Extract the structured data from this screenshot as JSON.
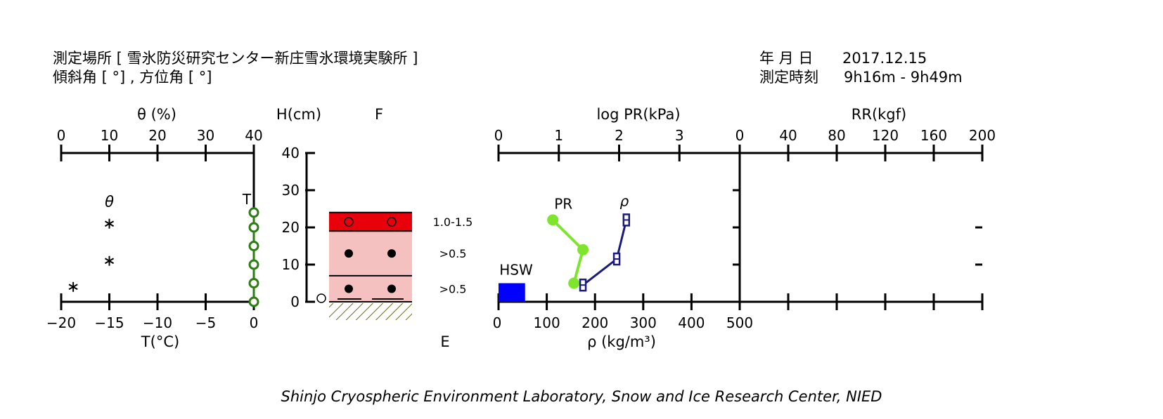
{
  "header": {
    "site_line": "測定場所 [ 雪氷防災研究センター新庄雪氷環境実験所 ]",
    "angle_line": "傾斜角 [ °] , 方位角 [ °]",
    "date_label": "年 月 日",
    "date_value": "2017.12.15",
    "time_label": "測定時刻",
    "time_value": "9h16m - 9h49m"
  },
  "credit": "Shinjo Cryospheric Environment Laboratory, Snow and Ice Research Center, NIED",
  "chart_data": [
    {
      "type": "scatter",
      "name": "temperature-and-water-content",
      "top_axis": {
        "label": "θ (%)",
        "ticks": [
          "0",
          "10",
          "20",
          "30",
          "40"
        ],
        "range": [
          0,
          40
        ]
      },
      "bottom_axis": {
        "label": "T(°C)",
        "ticks": [
          "−20",
          "−15",
          "−10",
          "−5",
          "0"
        ],
        "range": [
          -20,
          0
        ]
      },
      "y_range_cm": [
        0,
        40
      ],
      "series": [
        {
          "name": "T",
          "marker": "circle",
          "color": "#2e7d12",
          "points": [
            [
              0,
              0
            ],
            [
              0,
              5
            ],
            [
              0,
              10
            ],
            [
              0,
              15
            ],
            [
              0,
              20
            ],
            [
              0,
              24
            ]
          ]
        },
        {
          "name": "θ",
          "marker": "asterisk",
          "color": "#000000",
          "points": [
            [
              2.5,
              4
            ],
            [
              10,
              11
            ],
            [
              10,
              21
            ]
          ]
        }
      ]
    },
    {
      "type": "table",
      "name": "snow-stratigraphy",
      "y_label": "H(cm)",
      "y_ticks": [
        "0",
        "10",
        "20",
        "30",
        "40"
      ],
      "y_range": [
        0,
        40
      ],
      "f_label": "F",
      "e_label": "E",
      "total_height_cm": 24,
      "layers": [
        {
          "bottom": 0,
          "top": 7,
          "grain": "filled-circle",
          "grain_size": ">0.5",
          "color": "#f4c0c0"
        },
        {
          "bottom": 7,
          "top": 19,
          "grain": "filled-circle",
          "grain_size": ">0.5",
          "color": "#f4c0c0"
        },
        {
          "bottom": 19,
          "top": 24,
          "grain": "open-circle",
          "grain_size": "1.0-1.5",
          "color": "#e8000b"
        }
      ],
      "ground_marker": "open-circle"
    },
    {
      "type": "line",
      "name": "density-and-resistance",
      "top_axis_pr": {
        "label": "log PR(kPa)",
        "ticks": [
          "0",
          "1",
          "2",
          "3"
        ],
        "range": [
          0,
          4
        ]
      },
      "top_axis_rr": {
        "label": "RR(kgf)",
        "ticks": [
          "0",
          "40",
          "80",
          "120",
          "160",
          "200"
        ],
        "range": [
          0,
          200
        ]
      },
      "bottom_axis": {
        "label": "ρ (kg/m³)",
        "ticks": [
          "0",
          "100",
          "200",
          "300",
          "400",
          "500"
        ],
        "range": [
          0,
          500
        ]
      },
      "y_range_cm": [
        0,
        40
      ],
      "series": [
        {
          "name": "PR",
          "color": "#7ee52c",
          "marker": "circle",
          "points": [
            [
              0.9,
              22
            ],
            [
              1.4,
              14
            ],
            [
              1.25,
              5
            ]
          ]
        },
        {
          "name": "ρ",
          "color": "#1a1a7c",
          "marker": "square",
          "points": [
            [
              265,
              22
            ],
            [
              245,
              11.5
            ],
            [
              175,
              4.5
            ]
          ]
        }
      ],
      "hsw": {
        "label": "HSW",
        "density": 55,
        "height": 5,
        "color": "#0000ff"
      }
    }
  ]
}
